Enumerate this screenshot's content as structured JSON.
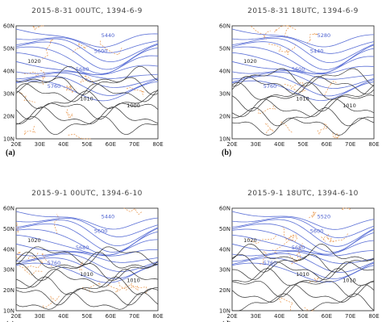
{
  "panels": [
    {
      "title": "2015-8-31 00UTC, 1394-6-9",
      "label": "(a)",
      "contour_labels": [
        "5440",
        "5600",
        "5680",
        "5760",
        "1020",
        "1010",
        "1000"
      ]
    },
    {
      "title": "2015-8-31 18UTC, 1394-6-9",
      "label": "(b)",
      "contour_labels": [
        "5280",
        "5440",
        "5600",
        "5760",
        "1020",
        "1010",
        "1010"
      ]
    },
    {
      "title": "2015-9-1 00UTC, 1394-6-10",
      "label": "(c)",
      "contour_labels": [
        "5440",
        "5600",
        "5680",
        "5760",
        "1020",
        "1010",
        "1010"
      ]
    },
    {
      "title": "2015-9-1 18UTC, 1394-6-10",
      "label": "(d)",
      "contour_labels": [
        "5520",
        "5600",
        "5680",
        "5760",
        "1020",
        "1010",
        "1010"
      ]
    }
  ],
  "lat_ticks": [
    "60N",
    "50N",
    "40N",
    "30N",
    "20N",
    "10N"
  ],
  "lon_ticks": [
    "20E",
    "30E",
    "40E",
    "50E",
    "60E",
    "70E",
    "80E"
  ]
}
